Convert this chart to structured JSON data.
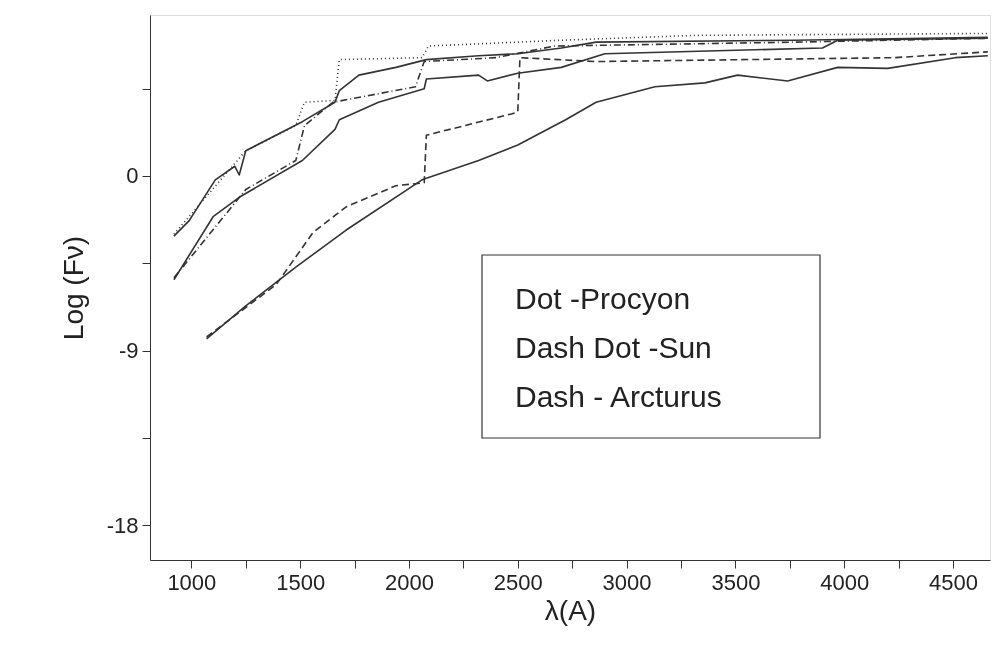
{
  "chart_data": {
    "type": "line",
    "xlabel": "λ(A)",
    "ylabel": "Log (Fν)",
    "xlim": [
      810,
      4670
    ],
    "ylim": [
      -19.8,
      8.3
    ],
    "xticks": [
      1000,
      {
        "value": 1250,
        "label": null
      },
      1500,
      {
        "value": 1750,
        "label": null
      },
      2000,
      {
        "value": 2250,
        "label": null
      },
      2500,
      {
        "value": 2750,
        "label": null
      },
      3000,
      {
        "value": 3250,
        "label": null
      },
      3500,
      {
        "value": 3750,
        "label": null
      },
      4000,
      {
        "value": 4250,
        "label": null
      },
      4500
    ],
    "yticks": [
      -18,
      {
        "value": -13.5,
        "label": null
      },
      -9,
      {
        "value": -4.5,
        "label": null
      },
      0,
      {
        "value": 4.5,
        "label": null
      }
    ],
    "grid": false,
    "annotations": [
      "Dot -Procyon",
      "Dash Dot -Sun",
      "Dash - Arcturus"
    ],
    "series": [
      {
        "color": "#333333",
        "line_style": "solid",
        "x": [
          920,
          990,
          1110,
          1200,
          1220,
          1250,
          1510,
          1660,
          1680,
          1770,
          1940,
          2080,
          2320,
          2500,
          2700,
          2860,
          3770,
          4660
        ],
        "values": [
          -3.1,
          -2.3,
          -0.2,
          0.5,
          0.05,
          1.3,
          2.8,
          3.8,
          4.4,
          5.2,
          5.6,
          6.0,
          6.2,
          6.3,
          6.6,
          6.9,
          7.0,
          7.15
        ]
      },
      {
        "color": "#333333",
        "line_style": "dotted",
        "x": [
          920,
          1250,
          1480,
          1520,
          1660,
          1680,
          2060,
          2090,
          2700,
          3320,
          4660
        ],
        "values": [
          -3.0,
          1.3,
          2.6,
          3.8,
          3.9,
          6.0,
          6.1,
          6.7,
          7.0,
          7.25,
          7.35
        ]
      },
      {
        "color": "#333333",
        "line_style": "solid",
        "x": [
          920,
          1100,
          1220,
          1510,
          1660,
          1680,
          1860,
          2070,
          2080,
          2320,
          2360,
          2500,
          2700,
          2900,
          3900,
          3970,
          4660
        ],
        "values": [
          -5.35,
          -2.1,
          -1.1,
          0.8,
          2.4,
          2.9,
          3.8,
          4.5,
          5.0,
          5.2,
          4.9,
          5.3,
          5.6,
          6.3,
          6.6,
          7.0,
          7.1
        ]
      },
      {
        "color": "#333333",
        "line_style": "dashdot",
        "x": [
          920,
          1250,
          1480,
          1520,
          1650,
          2030,
          2070,
          2400,
          2670,
          3770,
          4660
        ],
        "values": [
          -5.25,
          -0.7,
          0.8,
          2.6,
          3.8,
          4.6,
          5.9,
          6.1,
          6.7,
          6.9,
          7.1
        ]
      },
      {
        "color": "#333333",
        "line_style": "solid",
        "x": [
          1070,
          1250,
          1480,
          1710,
          2060,
          2320,
          2500,
          2720,
          2860,
          3130,
          3360,
          3510,
          3740,
          3970,
          4200,
          4510,
          4660
        ],
        "values": [
          -8.4,
          -6.7,
          -4.7,
          -2.8,
          -0.2,
          0.8,
          1.6,
          2.9,
          3.8,
          4.6,
          4.8,
          5.2,
          4.9,
          5.6,
          5.55,
          6.1,
          6.2
        ]
      },
      {
        "color": "#333333",
        "line_style": "dashed",
        "x": [
          1070,
          1390,
          1560,
          1710,
          1940,
          2070,
          2080,
          2470,
          2500,
          2510,
          2860,
          4230,
          4660
        ],
        "values": [
          -8.3,
          -5.6,
          -2.9,
          -1.6,
          -0.5,
          -0.35,
          2.1,
          3.2,
          3.3,
          6.1,
          5.9,
          6.1,
          6.4
        ]
      }
    ]
  }
}
